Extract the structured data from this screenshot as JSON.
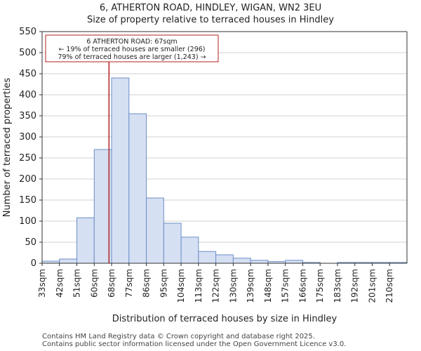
{
  "header": {
    "title": "6, ATHERTON ROAD, HINDLEY, WIGAN, WN2 3EU",
    "subtitle": "Size of property relative to terraced houses in Hindley"
  },
  "footer": {
    "line1": "Contains HM Land Registry data © Crown copyright and database right 2025.",
    "line2": "Contains public sector information licensed under the Open Government Licence v3.0."
  },
  "chart_data": {
    "type": "bar",
    "title": "6, ATHERTON ROAD, HINDLEY, WIGAN, WN2 3EU",
    "subtitle": "Size of property relative to terraced houses in Hindley",
    "xlabel": "Distribution of terraced houses by size in Hindley",
    "ylabel": "Number of terraced properties",
    "categories": [
      "33sqm",
      "42sqm",
      "51sqm",
      "60sqm",
      "68sqm",
      "77sqm",
      "86sqm",
      "95sqm",
      "104sqm",
      "113sqm",
      "122sqm",
      "130sqm",
      "139sqm",
      "148sqm",
      "157sqm",
      "166sqm",
      "175sqm",
      "183sqm",
      "192sqm",
      "201sqm",
      "210sqm"
    ],
    "values": [
      5,
      10,
      108,
      270,
      440,
      355,
      155,
      95,
      62,
      28,
      20,
      12,
      7,
      4,
      7,
      2,
      0,
      2,
      2,
      2,
      2
    ],
    "ylim": [
      0,
      550
    ],
    "yticks": [
      0,
      50,
      100,
      150,
      200,
      250,
      300,
      350,
      400,
      450,
      500,
      550
    ],
    "property_marker": {
      "value_index": 3.85,
      "color": "#b22222"
    },
    "annotation": {
      "line1": "6 ATHERTON ROAD: 67sqm",
      "line2": "← 19% of terraced houses are smaller (296)",
      "line3": "79% of terraced houses are larger (1,243) →"
    },
    "colors": {
      "bar_fill": "#d6e0f3",
      "bar_stroke": "#6a8fc7",
      "grid": "#d0d0d0",
      "axis": "#333333"
    }
  }
}
